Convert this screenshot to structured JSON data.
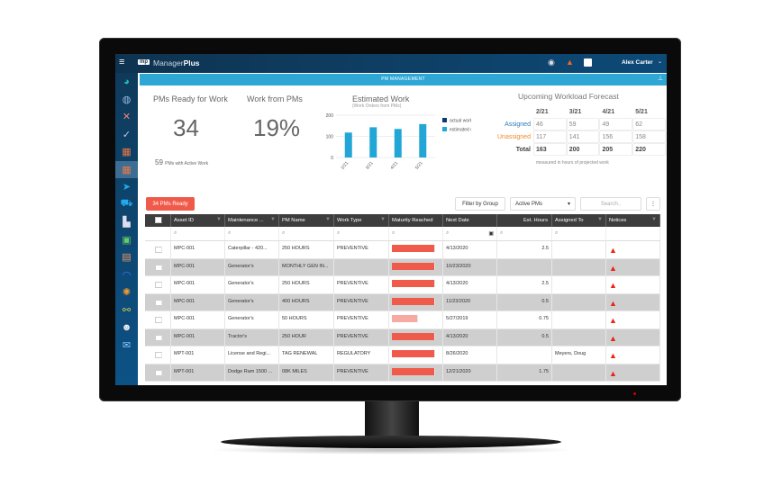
{
  "app": {
    "brand_prefix": "Manager",
    "brand_bold": "Plus",
    "logo": "mp",
    "user": "Alex Carter",
    "section": "PM MANAGEMENT"
  },
  "icons": {
    "topbar": [
      "globe-icon",
      "bell-icon",
      "inbox-icon"
    ],
    "sidebar": [
      "dashboard-icon",
      "globe-icon",
      "tools-icon",
      "checklist-icon",
      "calendar-icon",
      "pm-calendar-icon",
      "send-icon",
      "cart-icon",
      "inventory-icon",
      "badge-icon",
      "reports-icon",
      "integration-icon",
      "settings-icon",
      "workflow-icon",
      "users-icon",
      "mail-icon"
    ]
  },
  "kpis": {
    "ready_title": "PMs Ready for Work",
    "ready_value": "34",
    "active_value": "59",
    "active_label": "PMs with Active Work",
    "work_title": "Work from PMs",
    "work_value": "19%"
  },
  "chart_data": {
    "type": "bar",
    "title": "Estimated Work",
    "subtitle": "(Work Orders from PMs)",
    "categories": [
      "2/21",
      "3/21",
      "4/21",
      "5/21"
    ],
    "series": [
      {
        "name": "actual work",
        "color": "#0d3a6e",
        "values": [
          0,
          0,
          0,
          0
        ]
      },
      {
        "name": "estimated work",
        "color": "#22a6d6",
        "values": [
          118,
          143,
          135,
          158
        ]
      }
    ],
    "ylim": [
      0,
      200
    ],
    "yticks": [
      "0",
      "100",
      "200"
    ]
  },
  "forecast": {
    "title": "Upcoming Workload Forecast",
    "months": [
      "2/21",
      "3/21",
      "4/21",
      "5/21"
    ],
    "rows": [
      {
        "label": "Assigned",
        "values": [
          "46",
          "59",
          "49",
          "62"
        ]
      },
      {
        "label": "Unassigned",
        "values": [
          "117",
          "141",
          "156",
          "158"
        ]
      },
      {
        "label": "Total",
        "values": [
          "163",
          "200",
          "205",
          "220"
        ]
      }
    ],
    "note": "measured in hours of projected work"
  },
  "toolbar": {
    "ready_button": "34 PMs Ready",
    "filter_group": "Filter by Group",
    "select_value": "Active PMs",
    "search_placeholder": "Search..",
    "more": "⋮"
  },
  "table": {
    "columns": [
      "Asset ID",
      "Maintenance ...",
      "PM Name",
      "Work Type",
      "Maturity Reached",
      "Next Date",
      "Est. Hours",
      "Assigned To",
      "Notices"
    ],
    "rows": [
      {
        "asset": "MPC-001",
        "maint": "Caterpillar - 420...",
        "pm": "250 HOURS",
        "type": "PREVENTIVE",
        "maturity": 100,
        "date": "4/13/2020",
        "hours": "2.5",
        "assigned": ""
      },
      {
        "asset": "MPC-001",
        "maint": "Generator's",
        "pm": "MONTHLY GEN IN...",
        "type": "",
        "maturity": 100,
        "date": "10/23/2020",
        "hours": "",
        "assigned": ""
      },
      {
        "asset": "MPC-001",
        "maint": "Generator's",
        "pm": "250 HOURS",
        "type": "PREVENTIVE",
        "maturity": 100,
        "date": "4/13/2020",
        "hours": "2.5",
        "assigned": ""
      },
      {
        "asset": "MPC-001",
        "maint": "Generator's",
        "pm": "400 HOURS",
        "type": "PREVENTIVE",
        "maturity": 100,
        "date": "11/23/2020",
        "hours": "0.5",
        "assigned": ""
      },
      {
        "asset": "MPC-001",
        "maint": "Generator's",
        "pm": "50 HOURS",
        "type": "PREVENTIVE",
        "maturity": 60,
        "date": "5/27/2019",
        "hours": "0.75",
        "assigned": ""
      },
      {
        "asset": "MPC-001",
        "maint": "Tractor's",
        "pm": "250 HOUR",
        "type": "PREVENTIVE",
        "maturity": 100,
        "date": "4/13/2020",
        "hours": "0.5",
        "assigned": ""
      },
      {
        "asset": "MPT-001",
        "maint": "License and Regi...",
        "pm": "TAG RENEWAL",
        "type": "REGULATORY",
        "maturity": 100,
        "date": "8/26/2020",
        "hours": "",
        "assigned": "Meyers, Doug"
      },
      {
        "asset": "MPT-001",
        "maint": "Dodge Ram 1500 ...",
        "pm": "08K MILES",
        "type": "PREVENTIVE",
        "maturity": 100,
        "date": "12/21/2020",
        "hours": "1.75",
        "assigned": ""
      }
    ]
  }
}
